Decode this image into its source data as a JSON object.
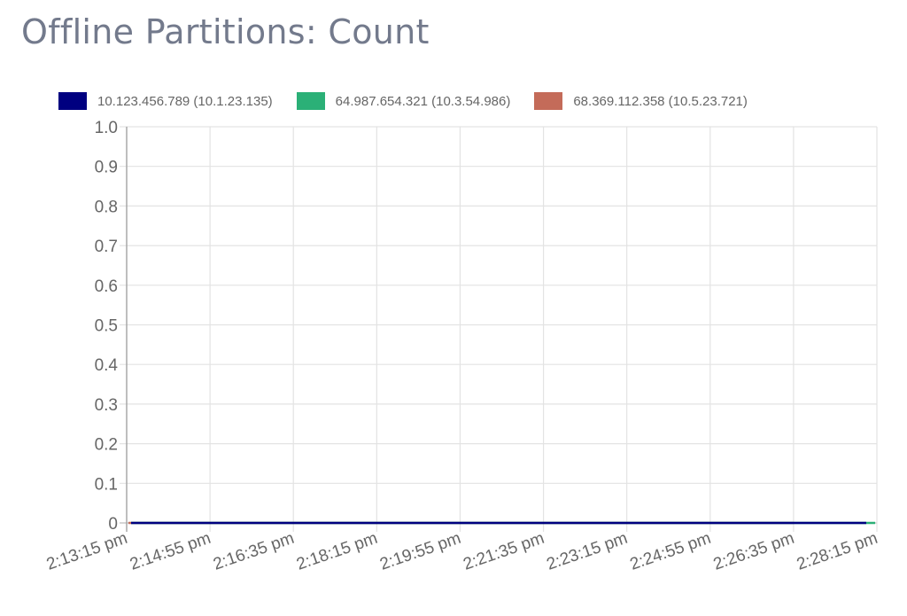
{
  "title": "Offline Partitions: Count",
  "legend": [
    {
      "label": "10.123.456.789 (10.1.23.135)",
      "color": "#000080"
    },
    {
      "label": "64.987.654.321 (10.3.54.986)",
      "color": "#2bb077"
    },
    {
      "label": "68.369.112.358 (10.5.23.721)",
      "color": "#c46b59"
    }
  ],
  "chart_data": {
    "type": "line",
    "title": "Offline Partitions: Count",
    "xlabel": "",
    "ylabel": "",
    "ylim": [
      0,
      1.0
    ],
    "grid": true,
    "legend_position": "top",
    "y_ticks": [
      "1.0",
      "0.9",
      "0.8",
      "0.7",
      "0.6",
      "0.5",
      "0.4",
      "0.3",
      "0.2",
      "0.1",
      "0"
    ],
    "x": [
      "2:13:15 pm",
      "2:14:55 pm",
      "2:16:35 pm",
      "2:18:15 pm",
      "2:19:55 pm",
      "2:21:35 pm",
      "2:23:15 pm",
      "2:24:55 pm",
      "2:26:35 pm",
      "2:28:15 pm"
    ],
    "series": [
      {
        "name": "10.123.456.789 (10.1.23.135)",
        "color": "#000080",
        "values": [
          0,
          0,
          0,
          0,
          0,
          0,
          0,
          0,
          0,
          0
        ]
      },
      {
        "name": "64.987.654.321 (10.3.54.986)",
        "color": "#2bb077",
        "values": [
          0,
          0,
          0,
          0,
          0,
          0,
          0,
          0,
          0,
          0
        ]
      },
      {
        "name": "68.369.112.358 (10.5.23.721)",
        "color": "#c46b59",
        "values": [
          0,
          0,
          0,
          0,
          0,
          0,
          0,
          0,
          0,
          0
        ]
      }
    ]
  }
}
